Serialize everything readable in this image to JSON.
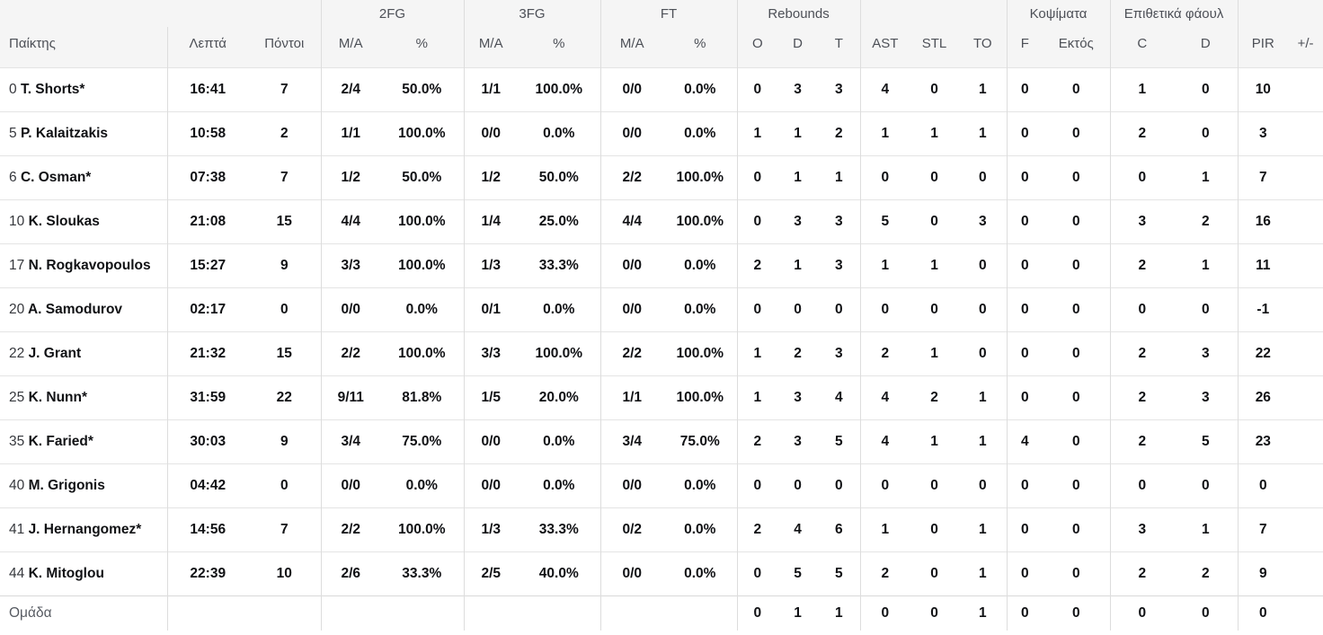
{
  "table": {
    "header": {
      "groups": [
        {
          "label": "",
          "span": 3
        },
        {
          "label": "2FG",
          "span": 2
        },
        {
          "label": "3FG",
          "span": 2
        },
        {
          "label": "FT",
          "span": 2
        },
        {
          "label": "Rebounds",
          "span": 3
        },
        {
          "label": "",
          "span": 3
        },
        {
          "label": "Κοψίματα",
          "span": 2
        },
        {
          "label": "Επιθετικά φάουλ",
          "span": 2
        },
        {
          "label": "",
          "span": 2
        }
      ],
      "columns": [
        "Παίκτης",
        "Λεπτά",
        "Πόντοι",
        "M/A",
        "%",
        "M/A",
        "%",
        "M/A",
        "%",
        "O",
        "D",
        "T",
        "AST",
        "STL",
        "TO",
        "F",
        "Εκτός",
        "C",
        "D",
        "PIR",
        "+/-"
      ]
    },
    "rows": [
      {
        "number": "0",
        "name": "T. Shorts*",
        "cells": [
          "16:41",
          "7",
          "2/4",
          "50.0%",
          "1/1",
          "100.0%",
          "0/0",
          "0.0%",
          "0",
          "3",
          "3",
          "4",
          "0",
          "1",
          "0",
          "0",
          "1",
          "0",
          "10",
          ""
        ]
      },
      {
        "number": "5",
        "name": "P. Kalaitzakis",
        "cells": [
          "10:58",
          "2",
          "1/1",
          "100.0%",
          "0/0",
          "0.0%",
          "0/0",
          "0.0%",
          "1",
          "1",
          "2",
          "1",
          "1",
          "1",
          "0",
          "0",
          "2",
          "0",
          "3",
          ""
        ]
      },
      {
        "number": "6",
        "name": "C. Osman*",
        "cells": [
          "07:38",
          "7",
          "1/2",
          "50.0%",
          "1/2",
          "50.0%",
          "2/2",
          "100.0%",
          "0",
          "1",
          "1",
          "0",
          "0",
          "0",
          "0",
          "0",
          "0",
          "1",
          "7",
          ""
        ]
      },
      {
        "number": "10",
        "name": "K. Sloukas",
        "cells": [
          "21:08",
          "15",
          "4/4",
          "100.0%",
          "1/4",
          "25.0%",
          "4/4",
          "100.0%",
          "0",
          "3",
          "3",
          "5",
          "0",
          "3",
          "0",
          "0",
          "3",
          "2",
          "16",
          ""
        ]
      },
      {
        "number": "17",
        "name": "N. Rogkavopoulos",
        "cells": [
          "15:27",
          "9",
          "3/3",
          "100.0%",
          "1/3",
          "33.3%",
          "0/0",
          "0.0%",
          "2",
          "1",
          "3",
          "1",
          "1",
          "0",
          "0",
          "0",
          "2",
          "1",
          "11",
          ""
        ]
      },
      {
        "number": "20",
        "name": "A. Samodurov",
        "cells": [
          "02:17",
          "0",
          "0/0",
          "0.0%",
          "0/1",
          "0.0%",
          "0/0",
          "0.0%",
          "0",
          "0",
          "0",
          "0",
          "0",
          "0",
          "0",
          "0",
          "0",
          "0",
          "-1",
          ""
        ]
      },
      {
        "number": "22",
        "name": "J. Grant",
        "cells": [
          "21:32",
          "15",
          "2/2",
          "100.0%",
          "3/3",
          "100.0%",
          "2/2",
          "100.0%",
          "1",
          "2",
          "3",
          "2",
          "1",
          "0",
          "0",
          "0",
          "2",
          "3",
          "22",
          ""
        ]
      },
      {
        "number": "25",
        "name": "K. Nunn*",
        "cells": [
          "31:59",
          "22",
          "9/11",
          "81.8%",
          "1/5",
          "20.0%",
          "1/1",
          "100.0%",
          "1",
          "3",
          "4",
          "4",
          "2",
          "1",
          "0",
          "0",
          "2",
          "3",
          "26",
          ""
        ]
      },
      {
        "number": "35",
        "name": "K. Faried*",
        "cells": [
          "30:03",
          "9",
          "3/4",
          "75.0%",
          "0/0",
          "0.0%",
          "3/4",
          "75.0%",
          "2",
          "3",
          "5",
          "4",
          "1",
          "1",
          "4",
          "0",
          "2",
          "5",
          "23",
          ""
        ]
      },
      {
        "number": "40",
        "name": "M. Grigonis",
        "cells": [
          "04:42",
          "0",
          "0/0",
          "0.0%",
          "0/0",
          "0.0%",
          "0/0",
          "0.0%",
          "0",
          "0",
          "0",
          "0",
          "0",
          "0",
          "0",
          "0",
          "0",
          "0",
          "0",
          ""
        ]
      },
      {
        "number": "41",
        "name": "J. Hernangomez*",
        "cells": [
          "14:56",
          "7",
          "2/2",
          "100.0%",
          "1/3",
          "33.3%",
          "0/2",
          "0.0%",
          "2",
          "4",
          "6",
          "1",
          "0",
          "1",
          "0",
          "0",
          "3",
          "1",
          "7",
          ""
        ]
      },
      {
        "number": "44",
        "name": "K. Mitoglou",
        "cells": [
          "22:39",
          "10",
          "2/6",
          "33.3%",
          "2/5",
          "40.0%",
          "0/0",
          "0.0%",
          "0",
          "5",
          "5",
          "2",
          "0",
          "1",
          "0",
          "0",
          "2",
          "2",
          "9",
          ""
        ]
      }
    ],
    "team_row": {
      "label": "Ομάδα",
      "cells": [
        "",
        "",
        "",
        "",
        "",
        "",
        "",
        "",
        "0",
        "1",
        "1",
        "0",
        "0",
        "1",
        "0",
        "0",
        "0",
        "0",
        "0",
        ""
      ]
    }
  },
  "colors": {
    "header_bg": "#f5f5f5",
    "header_text": "#4d5057",
    "row_text": "#101114",
    "jersey_text": "#36383d",
    "row_border": "#e4e4e4",
    "group_border": "#dddddd"
  }
}
